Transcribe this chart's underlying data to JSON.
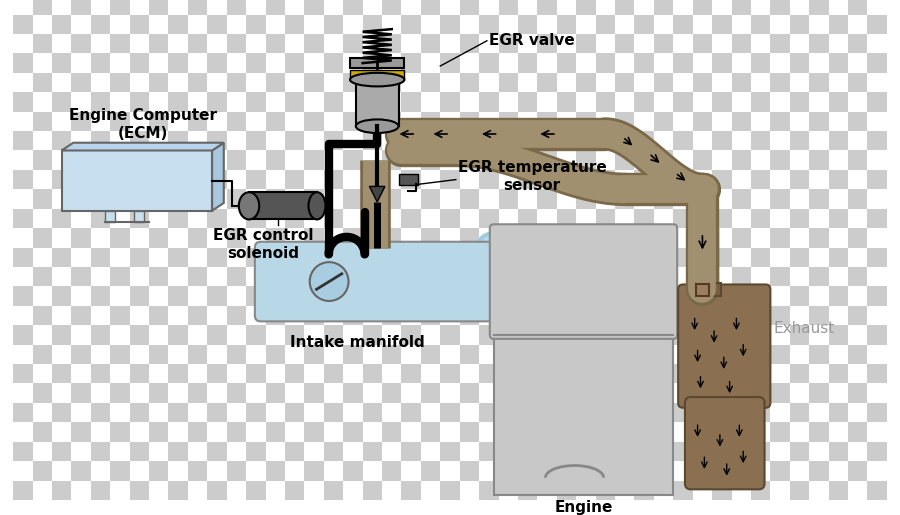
{
  "bg_checker_light": "#cccccc",
  "bg_checker_dark": "#aaaaaa",
  "checker_size": 20,
  "colors": {
    "ecm_box_front": "#c8dff0",
    "ecm_box_side": "#a8c8e0",
    "ecm_box_top": "#b8d4ec",
    "ecm_edge": "#666666",
    "intake_fill": "#b8d8e8",
    "intake_edge": "#888888",
    "engine_fill": "#c8c8c8",
    "engine_edge": "#888888",
    "egr_pipe_fill": "#a09070",
    "egr_pipe_edge": "#7a6848",
    "exhaust_fill": "#8a7050",
    "exhaust_edge": "#5a4830",
    "solenoid_fill": "#555555",
    "solenoid_light": "#777777",
    "valve_body": "#888888",
    "valve_yellow": "#ccaa00",
    "black": "#000000",
    "white": "#ffffff",
    "arrow": "#111111",
    "text": "#000000",
    "exhaust_label": "#999999"
  },
  "labels": {
    "egr_valve": "EGR valve",
    "ecm": "Engine Computer\n(ECM)",
    "egr_control": "EGR control\nsolenoid",
    "egr_temp": "EGR temperature\nsensor",
    "intake_manifold": "Intake manifold",
    "engine": "Engine",
    "exhaust": "Exhaust"
  },
  "figsize": [
    9.0,
    5.15
  ],
  "dpi": 100
}
